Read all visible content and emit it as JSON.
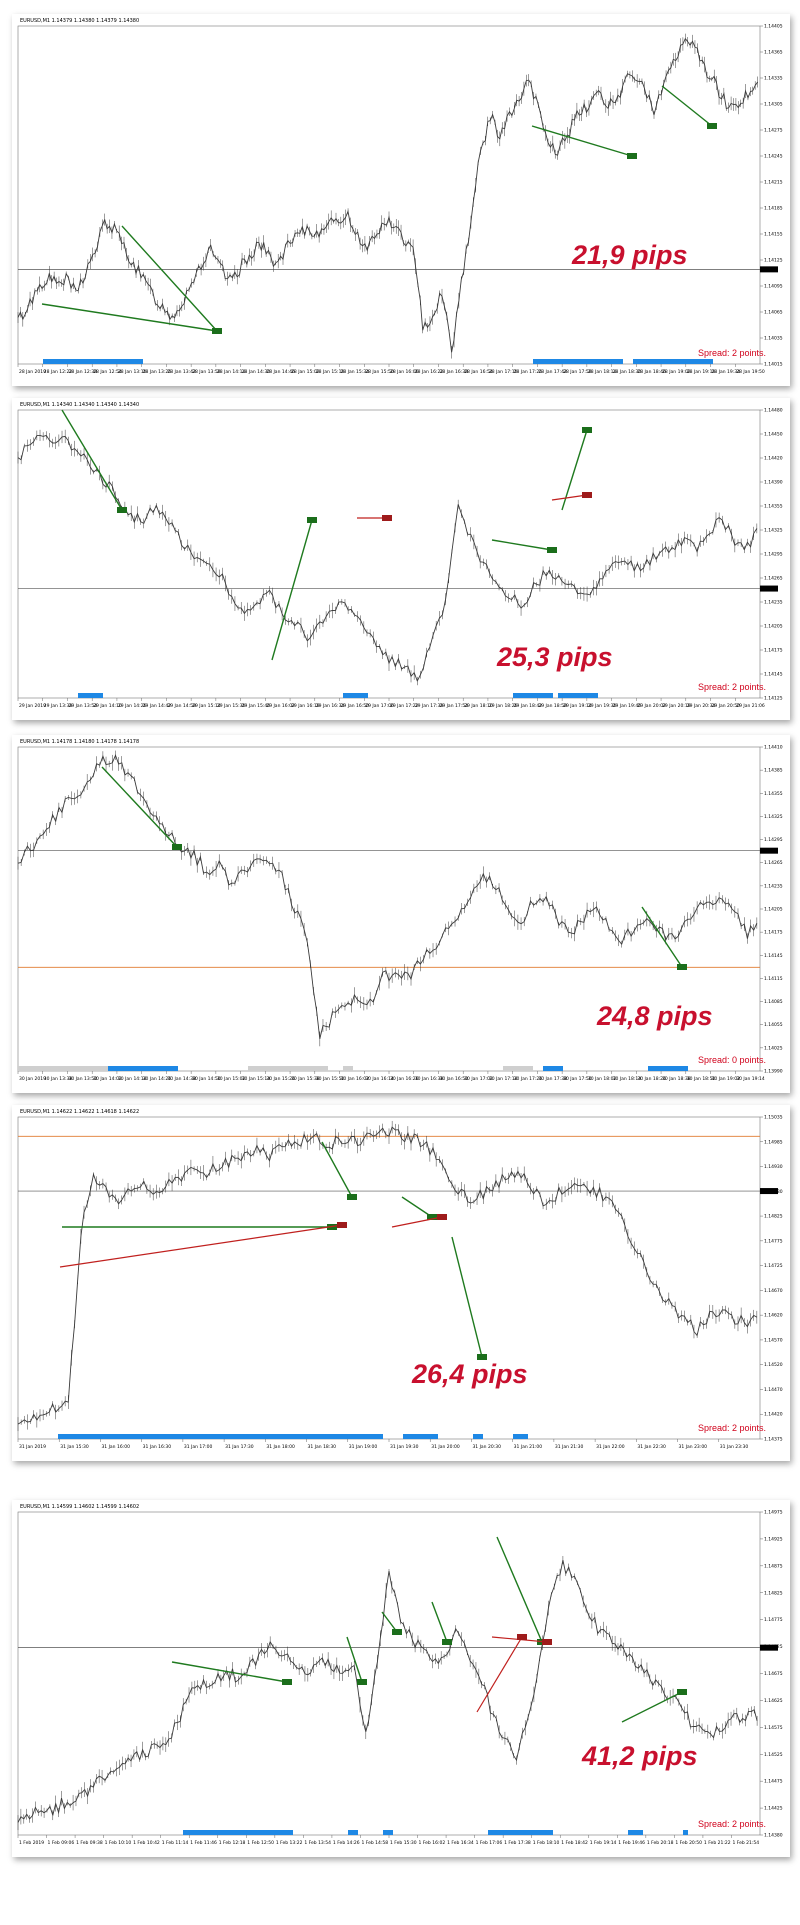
{
  "colors": {
    "price": "#3b3b3b",
    "green_line": "#1f7a1f",
    "red_line": "#c0201e",
    "pips_text": "#c8102e",
    "spread_text": "#d0021b",
    "session_bar": "#1e88e5",
    "grey_bar": "#cfcfcf",
    "horizontal_black": "#555555",
    "horizontal_orange": "#e07a2e"
  },
  "chart_data": [
    {
      "type": "line",
      "symbol_header": "EURUSD,M1  1.14379 1.14380 1.14379 1.14380",
      "annotation": "21,9 pips",
      "spread_label": "Spread: 2 points.",
      "ylim": [
        1.14015,
        1.14405
      ],
      "y_ticks": [
        "1.14405",
        "1.14365",
        "1.14335",
        "1.14305",
        "1.14275",
        "1.14245",
        "1.14215",
        "1.14185",
        "1.14155",
        "1.14125",
        "1.14095",
        "1.14065",
        "1.14035",
        "1.14015"
      ],
      "x_ticks": [
        "28 Jan 2019",
        "28 Jan 12:22",
        "28 Jan 12:38",
        "28 Jan 12:54",
        "28 Jan 13:10",
        "28 Jan 13:26",
        "28 Jan 13:42",
        "28 Jan 13:58",
        "28 Jan 14:14",
        "28 Jan 14:30",
        "28 Jan 14:46",
        "28 Jan 15:02",
        "28 Jan 15:18",
        "28 Jan 15:34",
        "28 Jan 15:50",
        "28 Jan 16:06",
        "28 Jan 16:22",
        "28 Jan 16:38",
        "28 Jan 16:54",
        "28 Jan 17:10",
        "28 Jan 17:26",
        "28 Jan 17:42",
        "28 Jan 17:58",
        "28 Jan 18:14",
        "28 Jan 18:30",
        "28 Jan 18:46",
        "28 Jan 19:02",
        "28 Jan 19:18",
        "28 Jan 19:34",
        "28 Jan 19:50"
      ],
      "series": [
        {
          "values": [
            1.14065,
            1.1408,
            1.14102,
            1.14115,
            1.14108,
            1.14112,
            1.14098,
            1.1412,
            1.14145,
            1.14178,
            1.1417,
            1.1415,
            1.1413,
            1.14112,
            1.14095,
            1.1408,
            1.1407,
            1.14085,
            1.1411,
            1.1413,
            1.14145,
            1.14125,
            1.1411,
            1.14125,
            1.1414,
            1.14155,
            1.1414,
            1.1413,
            1.1415,
            1.14162,
            1.1417,
            1.14165,
            1.1418,
            1.14175,
            1.1419,
            1.1417,
            1.1415,
            1.1416,
            1.1418,
            1.14175,
            1.1416,
            1.14145,
            1.1406,
            1.1407,
            1.141,
            1.1403,
            1.1411,
            1.1418,
            1.1426,
            1.143,
            1.1428,
            1.143,
            1.1432,
            1.1434,
            1.1431,
            1.1427,
            1.1426,
            1.1428,
            1.143,
            1.1431,
            1.1433,
            1.1432,
            1.1431,
            1.1434,
            1.1435,
            1.1433,
            1.1431,
            1.1434,
            1.1436,
            1.14385,
            1.1439,
            1.1436,
            1.14345,
            1.14325,
            1.1431,
            1.1432,
            1.1433,
            1.14335
          ]
        }
      ]
    },
    {
      "type": "line",
      "symbol_header": "EURUSD,M1  1.14340 1.14340 1.14340 1.14340",
      "annotation": "25,3 pips",
      "spread_label": "Spread: 2 points.",
      "ylim": [
        1.14125,
        1.1448
      ],
      "y_ticks": [
        "1.14480",
        "1.14450",
        "1.14420",
        "1.14390",
        "1.14355",
        "1.14325",
        "1.14295",
        "1.14265",
        "1.14235",
        "1.14205",
        "1.14175",
        "1.14145",
        "1.14125"
      ],
      "x_ticks": [
        "29 Jan 2019",
        "29 Jan 13:38",
        "29 Jan 13:54",
        "29 Jan 14:10",
        "29 Jan 14:26",
        "29 Jan 14:42",
        "29 Jan 14:58",
        "29 Jan 15:14",
        "29 Jan 15:30",
        "29 Jan 15:46",
        "29 Jan 16:02",
        "29 Jan 16:18",
        "29 Jan 16:34",
        "29 Jan 16:50",
        "29 Jan 17:06",
        "29 Jan 17:22",
        "29 Jan 17:38",
        "29 Jan 17:54",
        "29 Jan 18:10",
        "29 Jan 18:26",
        "29 Jan 18:42",
        "29 Jan 18:58",
        "29 Jan 19:14",
        "29 Jan 19:30",
        "29 Jan 19:46",
        "29 Jan 20:02",
        "29 Jan 20:18",
        "29 Jan 20:34",
        "29 Jan 20:50",
        "29 Jan 21:06"
      ],
      "series": [
        {
          "values": [
            1.1442,
            1.1444,
            1.1445,
            1.14445,
            1.1444,
            1.1443,
            1.1441,
            1.1439,
            1.1437,
            1.1435,
            1.14345,
            1.1436,
            1.1434,
            1.1432,
            1.143,
            1.1429,
            1.1428,
            1.1425,
            1.1423,
            1.1424,
            1.14255,
            1.1423,
            1.1422,
            1.142,
            1.14215,
            1.1423,
            1.14245,
            1.1422,
            1.142,
            1.1418,
            1.1417,
            1.1416,
            1.1415,
            1.142,
            1.1424,
            1.1436,
            1.1432,
            1.1429,
            1.14265,
            1.1425,
            1.1424,
            1.1426,
            1.1428,
            1.1427,
            1.1426,
            1.1425,
            1.14265,
            1.1428,
            1.14295,
            1.14285,
            1.1429,
            1.14305,
            1.1431,
            1.1432,
            1.1431,
            1.1433,
            1.14345,
            1.1432,
            1.1431,
            1.14335
          ]
        }
      ]
    },
    {
      "type": "line",
      "symbol_header": "EURUSD,M1  1.14178 1.14180 1.14178 1.14178",
      "annotation": "24,8 pips",
      "spread_label": "Spread: 0 points.",
      "ylim": [
        1.1399,
        1.1441
      ],
      "y_ticks": [
        "1.14410",
        "1.14385",
        "1.14355",
        "1.14325",
        "1.14295",
        "1.14265",
        "1.14235",
        "1.14205",
        "1.14175",
        "1.14145",
        "1.14115",
        "1.14085",
        "1.14055",
        "1.14025",
        "1.13990"
      ],
      "x_ticks": [
        "30 Jan 2019",
        "30 Jan 13:38",
        "30 Jan 13:50",
        "30 Jan 14:02",
        "30 Jan 14:14",
        "30 Jan 14:26",
        "30 Jan 14:38",
        "30 Jan 14:50",
        "30 Jan 15:02",
        "30 Jan 15:14",
        "30 Jan 15:26",
        "30 Jan 15:38",
        "30 Jan 15:50",
        "30 Jan 16:02",
        "30 Jan 16:14",
        "30 Jan 16:26",
        "30 Jan 16:38",
        "30 Jan 16:50",
        "30 Jan 17:02",
        "30 Jan 17:14",
        "30 Jan 17:26",
        "30 Jan 17:38",
        "30 Jan 17:50",
        "30 Jan 18:02",
        "30 Jan 18:14",
        "30 Jan 18:26",
        "30 Jan 18:38",
        "30 Jan 18:50",
        "30 Jan 19:02",
        "30 Jan 19:14"
      ],
      "series": [
        {
          "values": [
            1.1426,
            1.1428,
            1.143,
            1.1432,
            1.1434,
            1.14355,
            1.14375,
            1.14395,
            1.1439,
            1.1437,
            1.14345,
            1.1432,
            1.143,
            1.1428,
            1.1427,
            1.1425,
            1.1426,
            1.1423,
            1.1425,
            1.1427,
            1.1426,
            1.1424,
            1.142,
            1.1416,
            1.1404,
            1.1406,
            1.1407,
            1.1409,
            1.1408,
            1.1411,
            1.1412,
            1.1411,
            1.1413,
            1.1415,
            1.1417,
            1.1419,
            1.1422,
            1.1424,
            1.1423,
            1.142,
            1.14185,
            1.1421,
            1.1422,
            1.1418,
            1.14165,
            1.1419,
            1.142,
            1.1418,
            1.1416,
            1.14175,
            1.14185,
            1.1417,
            1.14165,
            1.1418,
            1.142,
            1.14215,
            1.1421,
            1.14195,
            1.1417,
            1.1418
          ]
        }
      ]
    },
    {
      "type": "line",
      "symbol_header": "EURUSD,M1  1.14622 1.14622 1.14618 1.14622",
      "annotation": "26,4 pips",
      "spread_label": "Spread: 2 points.",
      "ylim": [
        1.14375,
        1.15035
      ],
      "y_ticks": [
        "1.15035",
        "1.14985",
        "1.14930",
        "1.14880",
        "1.14825",
        "1.14775",
        "1.14725",
        "1.14670",
        "1.14620",
        "1.14570",
        "1.14520",
        "1.14470",
        "1.14420",
        "1.14375"
      ],
      "x_ticks": [
        "31 Jan 2019",
        "31 Jan 15:30",
        "31 Jan 16:00",
        "31 Jan 16:30",
        "31 Jan 17:00",
        "31 Jan 17:30",
        "31 Jan 18:00",
        "31 Jan 18:30",
        "31 Jan 19:00",
        "31 Jan 19:30",
        "31 Jan 20:00",
        "31 Jan 20:30",
        "31 Jan 21:00",
        "31 Jan 21:30",
        "31 Jan 22:00",
        "31 Jan 22:30",
        "31 Jan 23:00",
        "31 Jan 23:30"
      ],
      "series": [
        {
          "values": [
            1.1441,
            1.1442,
            1.1443,
            1.1444,
            1.1444,
            1.148,
            1.1491,
            1.1488,
            1.1486,
            1.1488,
            1.149,
            1.14885,
            1.14895,
            1.1491,
            1.1493,
            1.1492,
            1.14935,
            1.14945,
            1.1496,
            1.1497,
            1.14955,
            1.14975,
            1.1499,
            1.14985,
            1.1499,
            1.1498,
            1.1499,
            1.14985,
            1.15,
            1.1501,
            1.15005,
            1.1499,
            1.14985,
            1.1496,
            1.1492,
            1.1489,
            1.1486,
            1.1488,
            1.149,
            1.1491,
            1.14915,
            1.1488,
            1.1486,
            1.1488,
            1.1489,
            1.149,
            1.1488,
            1.1487,
            1.1482,
            1.1477,
            1.1472,
            1.1468,
            1.1464,
            1.1462,
            1.146,
            1.14625,
            1.1463,
            1.1462,
            1.14618,
            1.14622
          ]
        }
      ]
    },
    {
      "type": "line",
      "symbol_header": "EURUSD,M1  1.14599 1.14602 1.14599 1.14602",
      "annotation": "41,2 pips",
      "spread_label": "Spread: 2 points.",
      "ylim": [
        1.1438,
        1.14975
      ],
      "y_ticks": [
        "1.14975",
        "1.14925",
        "1.14875",
        "1.14825",
        "1.14775",
        "1.14725",
        "1.14675",
        "1.14625",
        "1.14575",
        "1.14525",
        "1.14475",
        "1.14425",
        "1.14380"
      ],
      "x_ticks": [
        "1 Feb 2019",
        "1 Feb 09:06",
        "1 Feb 09:38",
        "1 Feb 10:10",
        "1 Feb 10:42",
        "1 Feb 11:14",
        "1 Feb 11:46",
        "1 Feb 12:18",
        "1 Feb 12:50",
        "1 Feb 13:22",
        "1 Feb 13:54",
        "1 Feb 14:26",
        "1 Feb 14:58",
        "1 Feb 15:30",
        "1 Feb 16:02",
        "1 Feb 16:34",
        "1 Feb 17:06",
        "1 Feb 17:38",
        "1 Feb 18:10",
        "1 Feb 18:42",
        "1 Feb 19:14",
        "1 Feb 19:46",
        "1 Feb 20:18",
        "1 Feb 20:50",
        "1 Feb 21:22",
        "1 Feb 21:54"
      ],
      "series": [
        {
          "values": [
            1.1441,
            1.1442,
            1.1443,
            1.14425,
            1.1444,
            1.1445,
            1.1446,
            1.1448,
            1.145,
            1.1451,
            1.1452,
            1.1453,
            1.1454,
            1.1456,
            1.146,
            1.1464,
            1.1466,
            1.1467,
            1.1468,
            1.1467,
            1.1469,
            1.1471,
            1.1473,
            1.1471,
            1.1469,
            1.1468,
            1.147,
            1.1469,
            1.1468,
            1.147,
            1.1456,
            1.1471,
            1.1486,
            1.1477,
            1.1474,
            1.1472,
            1.147,
            1.1472,
            1.1476,
            1.147,
            1.1466,
            1.146,
            1.1456,
            1.1452,
            1.146,
            1.147,
            1.1482,
            1.1488,
            1.1485,
            1.148,
            1.1476,
            1.1474,
            1.1472,
            1.147,
            1.1468,
            1.1466,
            1.1464,
            1.1462,
            1.1459,
            1.1458,
            1.1457,
            1.14585,
            1.14595,
            1.146,
            1.14602
          ]
        }
      ]
    }
  ]
}
